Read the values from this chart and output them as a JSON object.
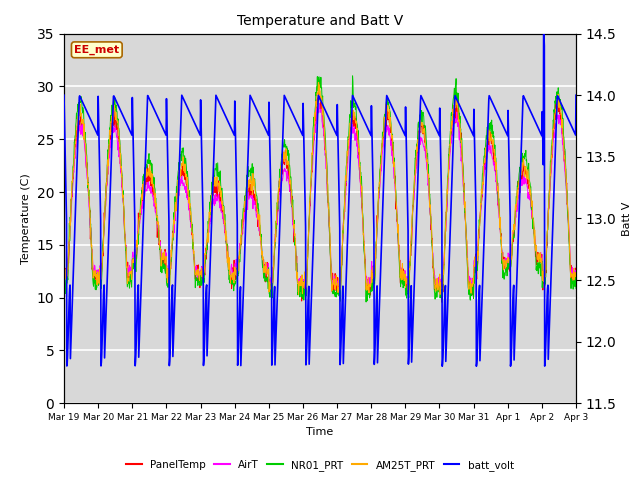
{
  "title": "Temperature and Batt V",
  "xlabel": "Time",
  "ylabel_left": "Temperature (C)",
  "ylabel_right": "Batt V",
  "annotation": "EE_met",
  "ylim_left": [
    0,
    35
  ],
  "ylim_right": [
    11.5,
    14.5
  ],
  "x_tick_labels": [
    "Mar 19",
    "Mar 20",
    "Mar 21",
    "Mar 22",
    "Mar 23",
    "Mar 24",
    "Mar 25",
    "Mar 26",
    "Mar 27",
    "Mar 28",
    "Mar 29",
    "Mar 30",
    "Mar 31",
    "Apr 1",
    "Apr 2",
    "Apr 3"
  ],
  "series_colors": {
    "PanelTemp": "#ff0000",
    "AirT": "#ff00ff",
    "NR01_PRT": "#00cc00",
    "AM25T_PRT": "#ffaa00",
    "batt_volt": "#0000ff"
  },
  "legend_labels": [
    "PanelTemp",
    "AirT",
    "NR01_PRT",
    "AM25T_PRT",
    "batt_volt"
  ],
  "background_color": "#ffffff",
  "plot_bg_color": "#d8d8d8",
  "grid_color": "#ffffff",
  "n_days": 15,
  "pts_per_day": 96,
  "yticks_left": [
    0,
    5,
    10,
    15,
    20,
    25,
    30,
    35
  ],
  "yticks_right": [
    11.5,
    12.0,
    12.5,
    13.0,
    13.5,
    14.0,
    14.5
  ]
}
